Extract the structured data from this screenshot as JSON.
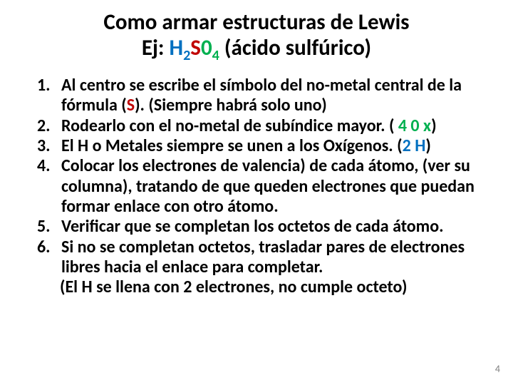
{
  "title": {
    "line1": "Como armar estructuras de Lewis",
    "line2_prefix": "Ej:   ",
    "formula": {
      "H": "H",
      "sub2": "2",
      "S": "S",
      "zero": "0",
      "sub4": "4"
    },
    "line2_suffix": "   (ácido sulfúrico)"
  },
  "items": [
    {
      "num": "1.",
      "parts": [
        {
          "t": "Al centro se escribe el símbolo del no-metal central de la fórmula ("
        },
        {
          "t": "S",
          "cls": "red"
        },
        {
          "t": "). (Siempre habrá solo uno)"
        }
      ]
    },
    {
      "num": "2.",
      "parts": [
        {
          "t": "Rodearlo con el no-metal de subíndice mayor. ( "
        },
        {
          "t": "4 0 x",
          "cls": "green"
        },
        {
          "t": ")"
        }
      ]
    },
    {
      "num": "3.",
      "parts": [
        {
          "t": "El H o Metales siempre se unen a los Oxígenos. ("
        },
        {
          "t": "2 H",
          "cls": "blue"
        },
        {
          "t": ")"
        }
      ]
    },
    {
      "num": "4.",
      "parts": [
        {
          "t": "Colocar los electrones de valencia) de cada átomo, (ver su columna), tratando de que queden electrones que puedan formar enlace con otro átomo."
        }
      ]
    },
    {
      "num": "5.",
      "parts": [
        {
          "t": "Verificar que se completan los octetos de cada átomo."
        }
      ]
    },
    {
      "num": "6.",
      "parts": [
        {
          "t": "Si no se completan octetos, trasladar pares de electrones libres hacia el enlace para completar."
        }
      ]
    }
  ],
  "note": "(El H se llena con 2 electrones, no cumple octeto)",
  "page_number": "4",
  "colors": {
    "H": "#0070c0",
    "S": "#c00000",
    "O": "#00b050",
    "text": "#000000",
    "bg": "#ffffff",
    "page_num": "#808080"
  }
}
